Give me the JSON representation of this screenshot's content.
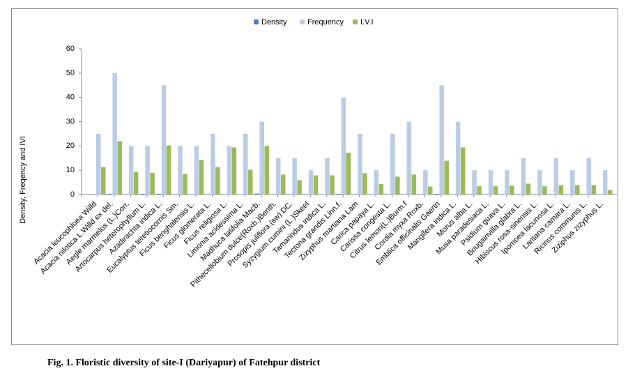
{
  "chart_data": {
    "type": "bar",
    "y_label": "Density, Freqency and IVI",
    "caption": "Fig.  1. Floristic diversity of site-I (Dariyapur) of Fatehpur district",
    "categories": [
      "Acacia leucophloea Willd",
      "Acacia nilotica L.Willd ex del.",
      "Aegle marmelos (L.)Corr.",
      "Artocarpus heterophyllum L.",
      "Azadirachta indica L.",
      "Eucalyptus teretiocornis Sm.",
      "Ficus benghalensis L.",
      "Ficus glomerata L.",
      "Ficus religiosa L.",
      "Limonia acidessima L.",
      "Madhuca latifolia Macb.",
      "Pithecellobium dulce(Roxb.)Benth.",
      "Prosopis juliflora (sw) DC.",
      "Syzygium cumini (L.)Skeel",
      "Tamarindus indica L.",
      "Tectona grandis Linn.f.",
      "Zizyphus martiana Lam",
      "Carica papaya L.",
      "Carissa congesta L.",
      "Citrus lemon(L.)Burm.f",
      "Cordia myxa Roxb.",
      "Emblica officinalis Gaertn",
      "Mangifera indica L.",
      "Morus alba L.",
      "Musa paradesiaca L.",
      "Psidium guava L.",
      "Bougainvilla glabra L.",
      "Hibiscus rosa-sinensis L.",
      "Ipomoea lacunosa L.",
      "Lantana camara L.",
      "Ricinus communis L.",
      "Ziziphus zizyphus L."
    ],
    "series": [
      {
        "name": "Density",
        "color": "#4f81bd",
        "values": [
          0.1,
          0.3,
          0.1,
          0.3,
          0.3,
          0.1,
          0.1,
          0.1,
          0.1,
          0.1,
          0.4,
          0.1,
          0.1,
          0.1,
          0.1,
          0.3,
          0.1,
          0.1,
          0.1,
          0.1,
          0.1,
          0.3,
          0.1,
          0.1,
          0.1,
          0.1,
          0.1,
          0.1,
          0.1,
          0.1,
          0.1,
          0.1
        ]
      },
      {
        "name": "Frequency",
        "color": "#b9cde5",
        "values": [
          25,
          50,
          20,
          20,
          45,
          20,
          20,
          25,
          20,
          25,
          30,
          15,
          15,
          10,
          15,
          40,
          25,
          10,
          25,
          30,
          10,
          45,
          30,
          10,
          10,
          10,
          15,
          10,
          15,
          10,
          15,
          10
        ]
      },
      {
        "name": "I.V.I",
        "color": "#9bbb59",
        "values": [
          11.3,
          22,
          9.3,
          9,
          20.2,
          8.5,
          14.2,
          11.3,
          19.4,
          10.2,
          20,
          8.2,
          5.9,
          7.9,
          7.9,
          17.2,
          8.8,
          4.3,
          7.4,
          8.2,
          3.3,
          13.9,
          19.4,
          3.4,
          3.4,
          3.6,
          4.5,
          3.4,
          3.9,
          3.9,
          3.9,
          1.9
        ]
      }
    ],
    "ylim": [
      0,
      60
    ],
    "yticks": [
      0,
      10,
      20,
      30,
      40,
      50,
      60
    ],
    "grid": false,
    "legend": "top"
  }
}
